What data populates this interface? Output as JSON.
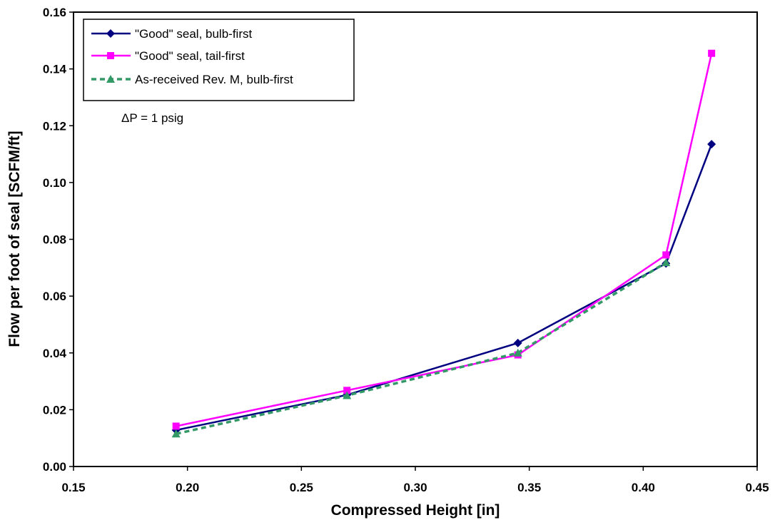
{
  "chart_data": {
    "type": "line",
    "xlabel": "Compressed Height [in]",
    "ylabel": "Flow per foot of seal [SCFM/ft]",
    "xlim": [
      0.15,
      0.45
    ],
    "ylim": [
      0.0,
      0.16
    ],
    "x_ticks": [
      "0.15",
      "0.20",
      "0.25",
      "0.30",
      "0.35",
      "0.40",
      "0.45"
    ],
    "y_ticks": [
      "0.00",
      "0.02",
      "0.04",
      "0.06",
      "0.08",
      "0.10",
      "0.12",
      "0.14",
      "0.16"
    ],
    "grid": false,
    "legend_position": "top-left",
    "annotation": "ΔP = 1 psig",
    "series": [
      {
        "name": "\"Good\" seal, bulb-first",
        "color": "#000080",
        "marker": "diamond",
        "line_style": "solid",
        "x": [
          0.195,
          0.27,
          0.345,
          0.41,
          0.43
        ],
        "y": [
          0.0128,
          0.0252,
          0.0435,
          0.0715,
          0.1135
        ]
      },
      {
        "name": "\"Good\" seal, tail-first",
        "color": "#ff00ff",
        "marker": "square",
        "line_style": "solid",
        "x": [
          0.195,
          0.27,
          0.345,
          0.41,
          0.43
        ],
        "y": [
          0.0142,
          0.0268,
          0.0393,
          0.0745,
          0.1455
        ]
      },
      {
        "name": "As-received Rev. M, bulb-first",
        "color": "#339966",
        "marker": "triangle",
        "line_style": "dashed",
        "x": [
          0.195,
          0.27,
          0.345,
          0.41
        ],
        "y": [
          0.0115,
          0.025,
          0.04,
          0.0718
        ]
      }
    ]
  }
}
